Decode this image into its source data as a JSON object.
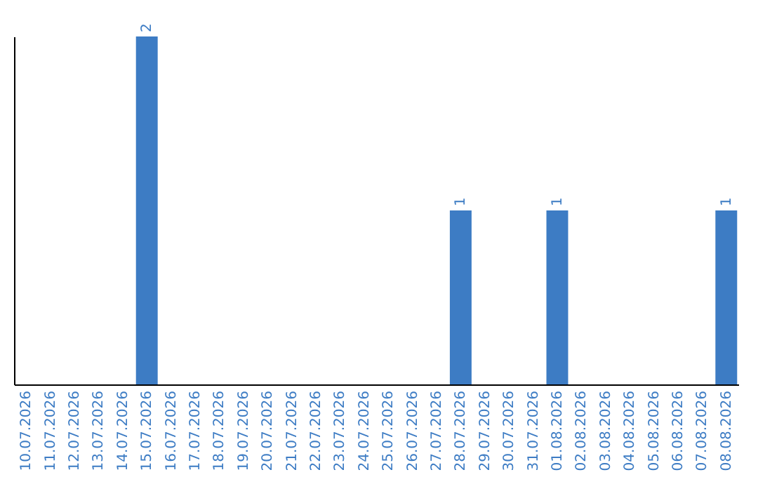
{
  "chart_data": {
    "type": "bar",
    "categories": [
      "10.07.2026",
      "11.07.2026",
      "12.07.2026",
      "13.07.2026",
      "14.07.2026",
      "15.07.2026",
      "16.07.2026",
      "17.07.2026",
      "18.07.2026",
      "19.07.2026",
      "20.07.2026",
      "21.07.2026",
      "22.07.2026",
      "23.07.2026",
      "24.07.2026",
      "25.07.2026",
      "26.07.2026",
      "27.07.2026",
      "28.07.2026",
      "29.07.2026",
      "30.07.2026",
      "31.07.2026",
      "01.08.2026",
      "02.08.2026",
      "03.08.2026",
      "04.08.2026",
      "05.08.2026",
      "06.08.2026",
      "07.08.2026",
      "08.08.2026"
    ],
    "values": [
      0,
      0,
      0,
      0,
      0,
      2,
      0,
      0,
      0,
      0,
      0,
      0,
      0,
      0,
      0,
      0,
      0,
      0,
      1,
      0,
      0,
      0,
      1,
      0,
      0,
      0,
      0,
      0,
      0,
      1
    ],
    "value_labels": [
      null,
      null,
      null,
      null,
      null,
      "2",
      null,
      null,
      null,
      null,
      null,
      null,
      null,
      null,
      null,
      null,
      null,
      null,
      "1",
      null,
      null,
      null,
      "1",
      null,
      null,
      null,
      null,
      null,
      null,
      "1"
    ],
    "color": "#3d7cc4",
    "tick_labels": "x",
    "grid": false
  }
}
